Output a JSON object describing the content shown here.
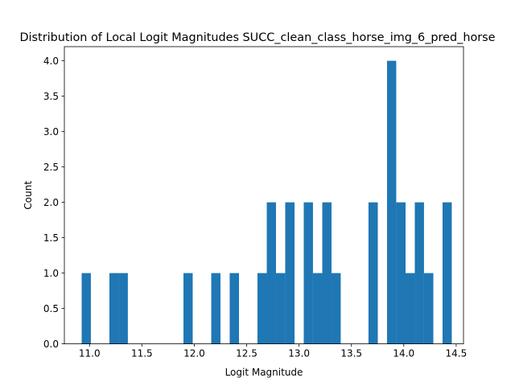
{
  "chart_data": {
    "type": "bar",
    "title": "Distribution of Local Logit Magnitudes SUCC_clean_class_horse_img_6_pred_horse",
    "xlabel": "Logit Magnitude",
    "ylabel": "Count",
    "xlim": [
      10.76,
      14.57
    ],
    "ylim": [
      0,
      4.2
    ],
    "xticks": [
      11.0,
      11.5,
      12.0,
      12.5,
      13.0,
      13.5,
      14.0,
      14.5
    ],
    "xtick_labels": [
      "11.0",
      "11.5",
      "12.0",
      "12.5",
      "13.0",
      "13.5",
      "14.0",
      "14.5"
    ],
    "yticks": [
      0.0,
      0.5,
      1.0,
      1.5,
      2.0,
      2.5,
      3.0,
      3.5,
      4.0
    ],
    "ytick_labels": [
      "0.0",
      "0.5",
      "1.0",
      "1.5",
      "2.0",
      "2.5",
      "3.0",
      "3.5",
      "4.0"
    ],
    "bar_color": "#1f77b4",
    "bins": [
      {
        "x0": 10.925,
        "x1": 11.013,
        "count": 1
      },
      {
        "x0": 11.19,
        "x1": 11.278,
        "count": 1
      },
      {
        "x0": 11.278,
        "x1": 11.366,
        "count": 1
      },
      {
        "x0": 11.897,
        "x1": 11.985,
        "count": 1
      },
      {
        "x0": 12.162,
        "x1": 12.25,
        "count": 1
      },
      {
        "x0": 12.338,
        "x1": 12.427,
        "count": 1
      },
      {
        "x0": 12.603,
        "x1": 12.692,
        "count": 1
      },
      {
        "x0": 12.692,
        "x1": 12.78,
        "count": 2
      },
      {
        "x0": 12.78,
        "x1": 12.868,
        "count": 1
      },
      {
        "x0": 12.868,
        "x1": 12.957,
        "count": 2
      },
      {
        "x0": 13.045,
        "x1": 13.133,
        "count": 2
      },
      {
        "x0": 13.133,
        "x1": 13.222,
        "count": 1
      },
      {
        "x0": 13.222,
        "x1": 13.31,
        "count": 2
      },
      {
        "x0": 13.31,
        "x1": 13.398,
        "count": 1
      },
      {
        "x0": 13.663,
        "x1": 13.752,
        "count": 2
      },
      {
        "x0": 13.84,
        "x1": 13.928,
        "count": 4
      },
      {
        "x0": 13.928,
        "x1": 14.017,
        "count": 2
      },
      {
        "x0": 14.017,
        "x1": 14.105,
        "count": 1
      },
      {
        "x0": 14.105,
        "x1": 14.193,
        "count": 2
      },
      {
        "x0": 14.193,
        "x1": 14.282,
        "count": 1
      },
      {
        "x0": 14.37,
        "x1": 14.458,
        "count": 2
      }
    ]
  }
}
